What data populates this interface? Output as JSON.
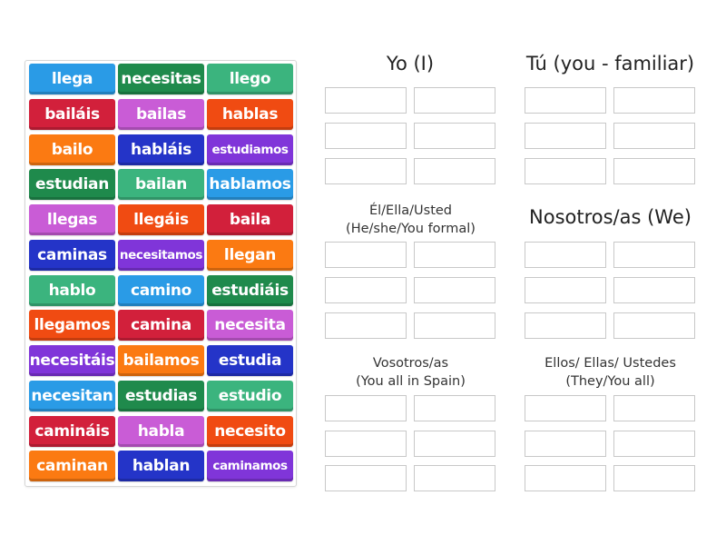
{
  "tile_bank": {
    "columns": 3,
    "tiles": [
      {
        "label": "llega",
        "color": "#2a9be6",
        "small": false
      },
      {
        "label": "necesitas",
        "color": "#1f8a4c",
        "small": false
      },
      {
        "label": "llego",
        "color": "#3bb47e",
        "small": false
      },
      {
        "label": "bailáis",
        "color": "#d2203b",
        "small": false
      },
      {
        "label": "bailas",
        "color": "#c95cd6",
        "small": false
      },
      {
        "label": "hablas",
        "color": "#f04b12",
        "small": false
      },
      {
        "label": "bailo",
        "color": "#fb7a12",
        "small": false
      },
      {
        "label": "habláis",
        "color": "#2434c8",
        "small": false
      },
      {
        "label": "estudiamos",
        "color": "#8035d9",
        "small": true
      },
      {
        "label": "estudian",
        "color": "#1f8a4c",
        "small": false
      },
      {
        "label": "bailan",
        "color": "#3bb47e",
        "small": false
      },
      {
        "label": "hablamos",
        "color": "#2a9be6",
        "small": false
      },
      {
        "label": "llegas",
        "color": "#c95cd6",
        "small": false
      },
      {
        "label": "llegáis",
        "color": "#f04b12",
        "small": false
      },
      {
        "label": "baila",
        "color": "#d2203b",
        "small": false
      },
      {
        "label": "caminas",
        "color": "#2434c8",
        "small": false
      },
      {
        "label": "necesitamos",
        "color": "#8035d9",
        "small": true
      },
      {
        "label": "llegan",
        "color": "#fb7a12",
        "small": false
      },
      {
        "label": "hablo",
        "color": "#3bb47e",
        "small": false
      },
      {
        "label": "camino",
        "color": "#2a9be6",
        "small": false
      },
      {
        "label": "estudiáis",
        "color": "#1f8a4c",
        "small": false
      },
      {
        "label": "llegamos",
        "color": "#f04b12",
        "small": false
      },
      {
        "label": "camina",
        "color": "#d2203b",
        "small": false
      },
      {
        "label": "necesita",
        "color": "#c95cd6",
        "small": false
      },
      {
        "label": "necesitáis",
        "color": "#8035d9",
        "small": false
      },
      {
        "label": "bailamos",
        "color": "#fb7a12",
        "small": false
      },
      {
        "label": "estudia",
        "color": "#2434c8",
        "small": false
      },
      {
        "label": "necesitan",
        "color": "#2a9be6",
        "small": false
      },
      {
        "label": "estudias",
        "color": "#1f8a4c",
        "small": false
      },
      {
        "label": "estudio",
        "color": "#3bb47e",
        "small": false
      },
      {
        "label": "camináis",
        "color": "#d2203b",
        "small": false
      },
      {
        "label": "habla",
        "color": "#c95cd6",
        "small": false
      },
      {
        "label": "necesito",
        "color": "#f04b12",
        "small": false
      },
      {
        "label": "caminan",
        "color": "#fb7a12",
        "small": false
      },
      {
        "label": "hablan",
        "color": "#2434c8",
        "small": false
      },
      {
        "label": "caminamos",
        "color": "#8035d9",
        "small": true
      }
    ]
  },
  "groups": [
    {
      "id": "yo",
      "line1": "Yo (I)",
      "line2": "",
      "style": "big",
      "slots": 6
    },
    {
      "id": "tu",
      "line1": "Tú (you - familiar)",
      "line2": "",
      "style": "big",
      "slots": 6
    },
    {
      "id": "el",
      "line1": "Él/Ella/Usted",
      "line2": "(He/she/You formal)",
      "style": "med",
      "slots": 6
    },
    {
      "id": "nosotros",
      "line1": "Nosotros/as (We)",
      "line2": "",
      "style": "big",
      "slots": 6
    },
    {
      "id": "vosotros",
      "line1": "Vosotros/as",
      "line2": "(You all in Spain)",
      "style": "med",
      "slots": 6
    },
    {
      "id": "ellos",
      "line1": "Ellos/ Ellas/ Ustedes",
      "line2": "(They/You all)",
      "style": "med",
      "slots": 6
    }
  ]
}
